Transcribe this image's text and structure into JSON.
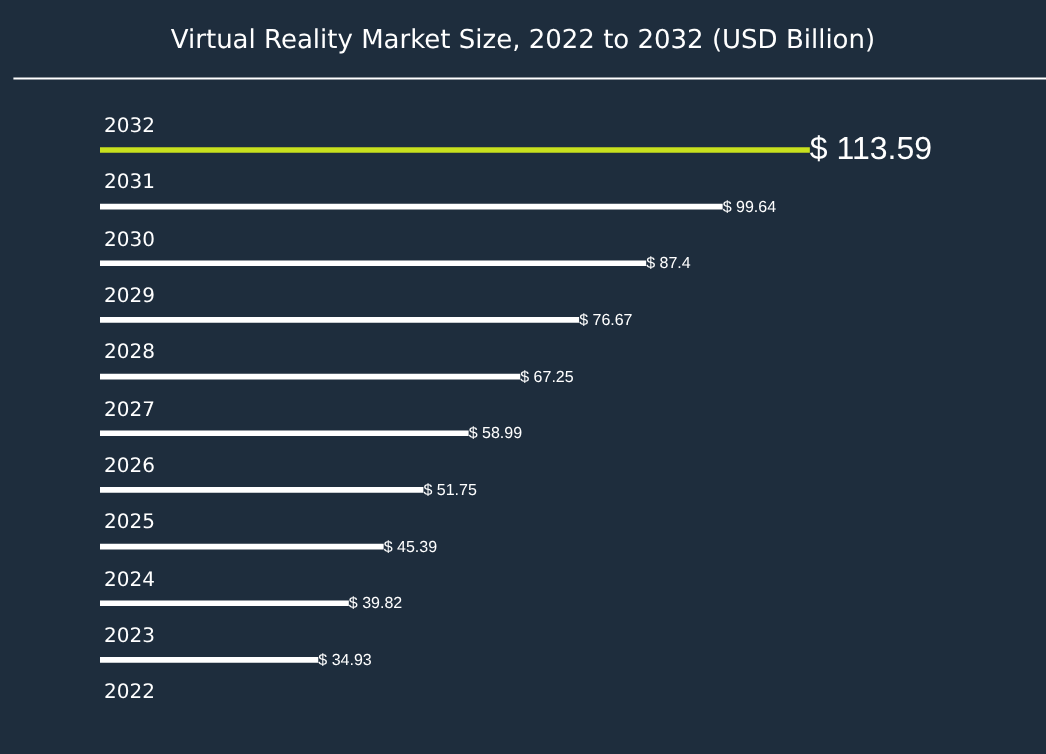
{
  "chart_data": {
    "type": "bar",
    "orientation": "horizontal",
    "title": "Virtual Reality Market Size, 2022 to 2032 (USD Billion)",
    "categories": [
      "2032",
      "2031",
      "2030",
      "2029",
      "2028",
      "2027",
      "2026",
      "2025",
      "2024",
      "2023",
      "2022"
    ],
    "values": [
      113.59,
      99.64,
      87.4,
      76.67,
      67.25,
      58.99,
      51.75,
      45.39,
      39.82,
      34.93,
      null
    ],
    "value_labels": [
      "$ 113.59",
      "$ 99.64",
      "$ 87.4",
      "$ 76.67",
      "$ 67.25",
      "$ 58.99",
      "$ 51.75",
      "$ 45.39",
      "$ 39.82",
      "$ 34.93",
      null
    ],
    "colors": [
      "#c8e01e",
      "#ffffff",
      "#ffffff",
      "#ffffff",
      "#ffffff",
      "#ffffff",
      "#ffffff",
      "#ffffff",
      "#ffffff",
      "#ffffff",
      "#ffffff"
    ],
    "legend": false
  }
}
